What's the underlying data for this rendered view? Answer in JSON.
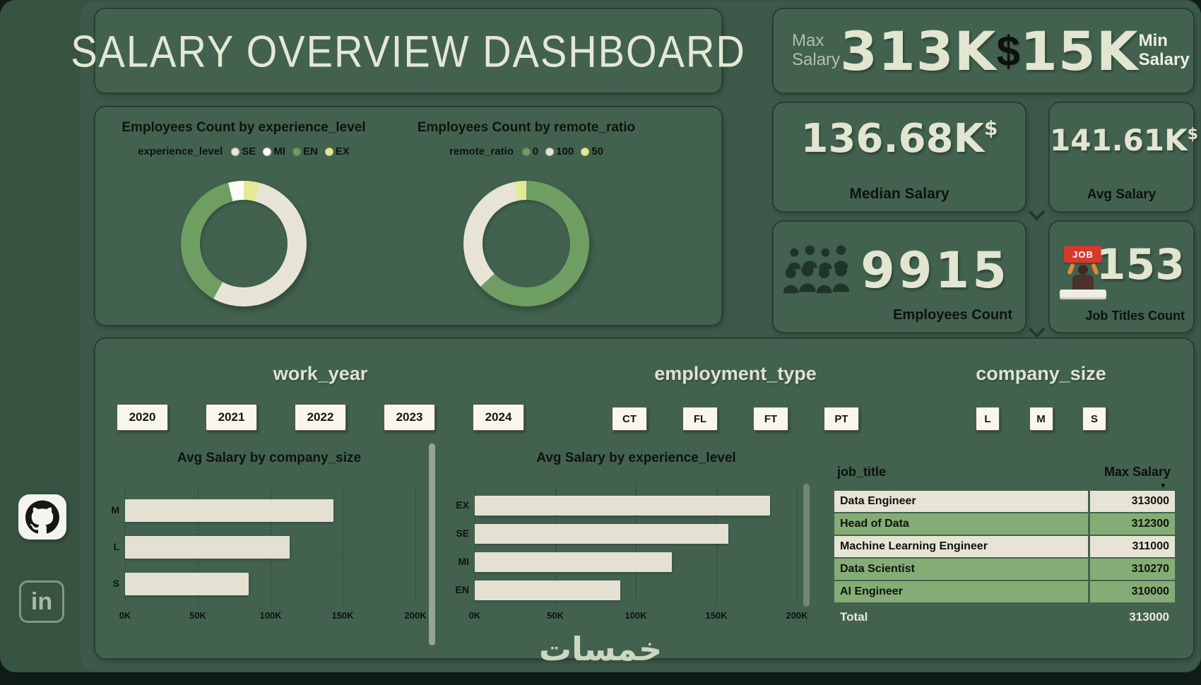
{
  "title": "SALARY OVERVIEW DASHBOARD",
  "watermark": "خمسات",
  "sidebar": {
    "github_icon": "github-logo",
    "linkedin_label": "in"
  },
  "kpis": {
    "max": {
      "label_lines": [
        "Max",
        "Salary"
      ],
      "value": "313K"
    },
    "currency_symbol": "$",
    "min": {
      "value": "15K",
      "label_lines": [
        "Min",
        "Salary"
      ]
    },
    "median": {
      "value": "136.68K",
      "suffix": "$",
      "label": "Median Salary"
    },
    "avg": {
      "value": "141.61K",
      "suffix": "$",
      "label": "Avg Salary"
    },
    "employees": {
      "value": "9915",
      "label": "Employees Count"
    },
    "job_titles": {
      "value": "153",
      "label": "Job Titles Count",
      "icon_text": "JOB"
    }
  },
  "slicers": [
    {
      "title": "work_year",
      "options": [
        "2020",
        "2021",
        "2022",
        "2023",
        "2024"
      ]
    },
    {
      "title": "employment_type",
      "options": [
        "CT",
        "FL",
        "FT",
        "PT"
      ]
    },
    {
      "title": "company_size",
      "options": [
        "L",
        "M",
        "S"
      ]
    }
  ],
  "chart_data": [
    {
      "type": "pie",
      "subtype": "donut",
      "title": "Employees Count by experience_level",
      "legend_title": "experience_level",
      "legend_position": "top",
      "legend": [
        {
          "label": "SE",
          "color": "#e7e4d6"
        },
        {
          "label": "MI",
          "color": "#fcfcf8"
        },
        {
          "label": "EN",
          "color": "#6f9e63"
        },
        {
          "label": "EX",
          "color": "#e4e994"
        }
      ],
      "segments": [
        {
          "label": "EX",
          "color": "#e4e994",
          "pct": 4
        },
        {
          "label": "SE",
          "color": "#e7e4d6",
          "pct": 54
        },
        {
          "label": "EN",
          "color": "#6f9e63",
          "pct": 38
        },
        {
          "label": "MI",
          "color": "#fcfcf8",
          "pct": 4
        }
      ],
      "note": "segment shares estimated from arc angles"
    },
    {
      "type": "pie",
      "subtype": "donut",
      "title": "Employees Count by remote_ratio",
      "legend_title": "remote_ratio",
      "legend_position": "top",
      "legend": [
        {
          "label": "0",
          "color": "#6f9e63"
        },
        {
          "label": "100",
          "color": "#e7e4d6"
        },
        {
          "label": "50",
          "color": "#e4e994"
        }
      ],
      "segments": [
        {
          "label": "0",
          "color": "#6f9e63",
          "pct": 63
        },
        {
          "label": "100",
          "color": "#e7e4d6",
          "pct": 34
        },
        {
          "label": "50",
          "color": "#e4e994",
          "pct": 3
        }
      ],
      "note": "segment shares estimated from arc angles"
    },
    {
      "type": "bar",
      "orientation": "horizontal",
      "title": "Avg Salary by company_size",
      "categories": [
        "M",
        "L",
        "S"
      ],
      "values_k": [
        143,
        113,
        85
      ],
      "xlim_k": [
        0,
        200
      ],
      "xticks": [
        "0K",
        "50K",
        "100K",
        "150K",
        "200K"
      ],
      "bar_color": "#e4e1d2",
      "grid": true,
      "note": "values estimated from bar lengths"
    },
    {
      "type": "bar",
      "orientation": "horizontal",
      "title": "Avg Salary by experience_level",
      "categories": [
        "EX",
        "SE",
        "MI",
        "EN"
      ],
      "values_k": [
        183,
        157,
        122,
        90
      ],
      "xlim_k": [
        0,
        200
      ],
      "xticks": [
        "0K",
        "50K",
        "100K",
        "150K",
        "200K"
      ],
      "bar_color": "#e4e1d2",
      "grid": true,
      "note": "values estimated from bar lengths"
    },
    {
      "type": "table",
      "columns": [
        "job_title",
        "Max Salary"
      ],
      "sort_indicator": "▾",
      "sort": {
        "column": "Max Salary",
        "direction": "desc"
      },
      "rows": [
        {
          "job_title": "Data Engineer",
          "max_salary": "313000",
          "style": "light"
        },
        {
          "job_title": "Head of Data",
          "max_salary": "312300",
          "style": "green"
        },
        {
          "job_title": "Machine Learning Engineer",
          "max_salary": "311000",
          "style": "light"
        },
        {
          "job_title": "Data Scientist",
          "max_salary": "310270",
          "style": "green"
        },
        {
          "job_title": "AI Engineer",
          "max_salary": "310000",
          "style": "green"
        }
      ],
      "total_row": {
        "job_title": "Total",
        "max_salary": "313000"
      }
    }
  ],
  "colors": {
    "background": "#3d594a",
    "card": "#42624f",
    "card_border": "#273f30",
    "cream_text": "#e2e5d0",
    "ink_text": "#10150f",
    "accent_green": "#6f9e63",
    "accent_yellow": "#e4e994",
    "row_light": "#e7e4d6",
    "row_green": "#86ac76"
  }
}
